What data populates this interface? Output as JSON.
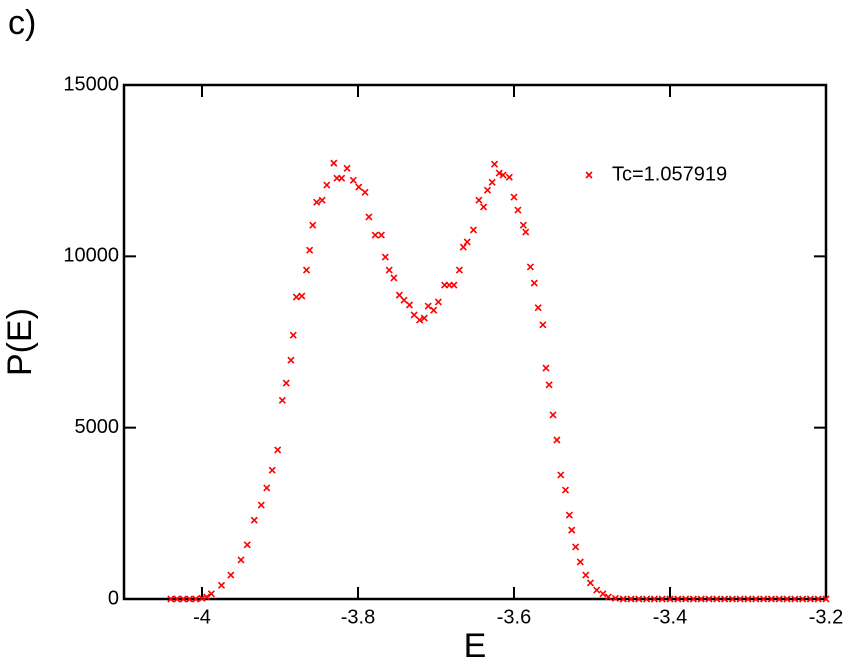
{
  "chart_data": {
    "type": "scatter",
    "panel_label": "c)",
    "x_label": "E",
    "y_label": "P(E)",
    "xlim": [
      -4.1,
      -3.2
    ],
    "ylim": [
      0,
      15000
    ],
    "xticks": [
      -4,
      -3.8,
      -3.6,
      -3.4,
      -3.2
    ],
    "yticks": [
      0,
      5000,
      10000,
      15000
    ],
    "legend_position": "upper right",
    "series": [
      {
        "name": "Tc=1.057919",
        "color": "#ff0000",
        "x": [
          -4.04,
          -4.032,
          -4.024,
          -4.016,
          -4.008,
          -4.0,
          -3.994,
          -3.988,
          -3.975,
          -3.963,
          -3.95,
          -3.942,
          -3.933,
          -3.924,
          -3.917,
          -3.91,
          -3.903,
          -3.897,
          -3.892,
          -3.886,
          -3.883,
          -3.879,
          -3.872,
          -3.866,
          -3.862,
          -3.858,
          -3.853,
          -3.846,
          -3.84,
          -3.831,
          -3.827,
          -3.821,
          -3.814,
          -3.806,
          -3.799,
          -3.791,
          -3.786,
          -3.778,
          -3.77,
          -3.765,
          -3.76,
          -3.754,
          -3.747,
          -3.741,
          -3.734,
          -3.728,
          -3.721,
          -3.715,
          -3.71,
          -3.703,
          -3.697,
          -3.689,
          -3.683,
          -3.677,
          -3.67,
          -3.665,
          -3.66,
          -3.652,
          -3.645,
          -3.639,
          -3.634,
          -3.628,
          -3.625,
          -3.619,
          -3.614,
          -3.606,
          -3.6,
          -3.595,
          -3.588,
          -3.585,
          -3.579,
          -3.574,
          -3.569,
          -3.563,
          -3.559,
          -3.555,
          -3.55,
          -3.545,
          -3.54,
          -3.534,
          -3.529,
          -3.526,
          -3.521,
          -3.515,
          -3.508,
          -3.502,
          -3.494,
          -3.486,
          -3.479,
          -3.47,
          -3.46,
          -3.45,
          -3.44,
          -3.43,
          -3.42,
          -3.41,
          -3.4,
          -3.39,
          -3.38,
          -3.37,
          -3.36,
          -3.35,
          -3.34,
          -3.33,
          -3.32,
          -3.31,
          -3.3,
          -3.29,
          -3.28,
          -3.27,
          -3.26,
          -3.25,
          -3.24,
          -3.23,
          -3.22,
          -3.21,
          -3.2
        ],
        "values": [
          0,
          0,
          0,
          0,
          0,
          20,
          60,
          150,
          400,
          700,
          1140,
          1580,
          2300,
          2740,
          3240,
          3760,
          4350,
          5800,
          6300,
          6970,
          7700,
          8810,
          8840,
          9600,
          10180,
          10910,
          11580,
          11640,
          12080,
          12720,
          12280,
          12280,
          12570,
          12220,
          12020,
          11870,
          11150,
          10620,
          10620,
          9980,
          9600,
          9370,
          8870,
          8720,
          8580,
          8290,
          8140,
          8200,
          8550,
          8430,
          8670,
          9160,
          9160,
          9160,
          9600,
          10270,
          10420,
          10770,
          11640,
          11440,
          11930,
          12160,
          12690,
          12430,
          12370,
          12310,
          11730,
          11350,
          10910,
          10710,
          9690,
          9220,
          8500,
          8000,
          6740,
          6250,
          5370,
          4640,
          3620,
          3180,
          2450,
          2010,
          1520,
          1080,
          700,
          470,
          260,
          150,
          60,
          20,
          0,
          0,
          0,
          0,
          0,
          0,
          0,
          0,
          0,
          0,
          0,
          0,
          0,
          0,
          0,
          0,
          0,
          0,
          0,
          0,
          0,
          0,
          0,
          0,
          0,
          0,
          0
        ]
      }
    ]
  }
}
